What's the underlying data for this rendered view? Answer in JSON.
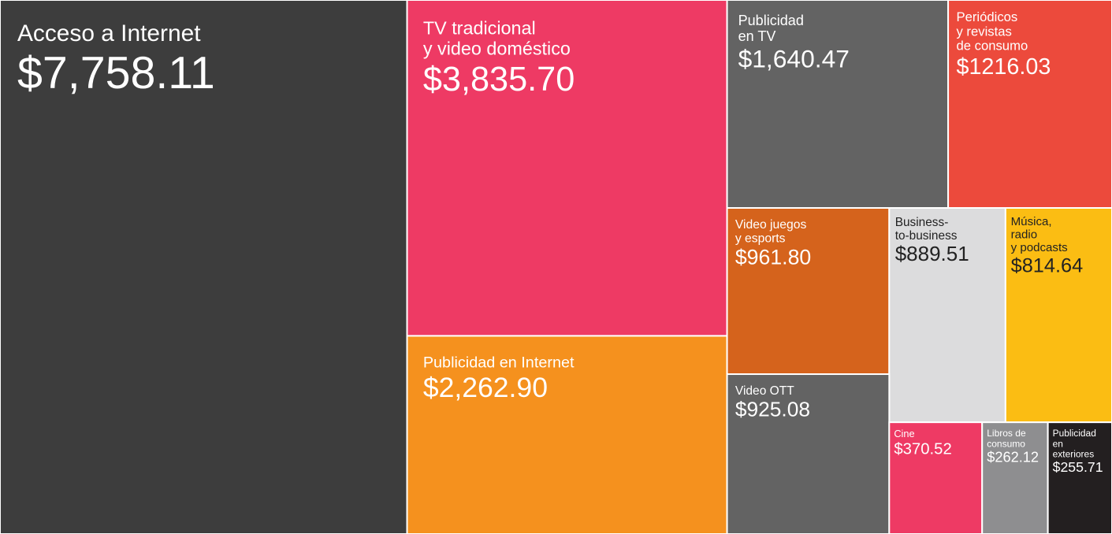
{
  "chart_data": {
    "type": "treemap",
    "categories": [
      "Acceso a Internet",
      "TV tradicional\ny video doméstico",
      "Publicidad en Internet",
      "Publicidad\nen TV",
      "Periódicos\ny revistas\nde consumo",
      "Video juegos\ny esports",
      "Business-\nto-business",
      "Música,\nradio\ny podcasts",
      "Video OTT",
      "Cine",
      "Libros de\nconsumo",
      "Publicidad\nen\nexteriores"
    ],
    "values": [
      7758.11,
      3835.7,
      2262.9,
      1640.47,
      1216.03,
      961.8,
      889.51,
      814.64,
      925.08,
      370.52,
      262.12,
      255.71
    ],
    "value_labels": [
      "$7,758.11",
      "$3,835.70",
      "$2,262.90",
      "$1,640.47",
      "$1216.03",
      "$961.80",
      "$889.51",
      "$814.64",
      "$925.08",
      "$370.52",
      "$262.12",
      "$255.71"
    ],
    "colors": [
      "#3d3d3d",
      "#ee3a64",
      "#f5911e",
      "#636363",
      "#ec4a3c",
      "#d5631c",
      "#dcdcdd",
      "#fbbd13",
      "#636363",
      "#ee3a64",
      "#8e8e90",
      "#231f20"
    ],
    "label_colors": [
      "#ffffff",
      "#ffffff",
      "#ffffff",
      "#ffffff",
      "#ffffff",
      "#ffffff",
      "#222222",
      "#222222",
      "#ffffff",
      "#ffffff",
      "#ffffff",
      "#ffffff"
    ]
  }
}
